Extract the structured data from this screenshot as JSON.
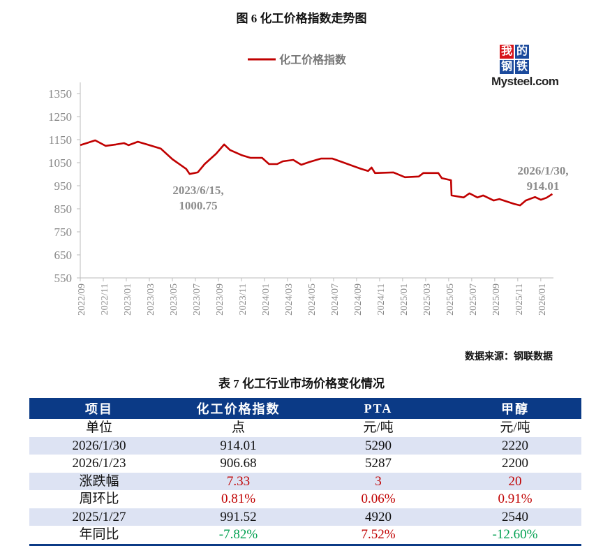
{
  "figure_title": "图 6 化工价格指数走势图",
  "table_title": "表 7 化工行业市场价格变化情况",
  "source": "数据来源：钢联数据",
  "logo": {
    "chars": [
      "我",
      "的",
      "钢",
      "铁"
    ],
    "word": "Mysteel.com"
  },
  "colors": {
    "line": "#c00000",
    "header": "#0b3a86",
    "stripe": "#dde3f3",
    "up": "#c00000",
    "down": "#00a050",
    "logo_red": "#d7141a",
    "logo_blue": "#1b4a9c"
  },
  "chart_data": {
    "type": "line",
    "title": "图 6 化工价格指数走势图",
    "legend": {
      "label": "化工价格指数",
      "placement": "top-center"
    },
    "xlabel": "",
    "ylabel": "",
    "ylim": [
      550,
      1350
    ],
    "yticks": [
      1350,
      1250,
      1150,
      1050,
      950,
      850,
      750,
      650,
      550
    ],
    "xlim_month_index": [
      0,
      41.1
    ],
    "xtick_labels": [
      "2022/09",
      "2022/11",
      "2023/01",
      "2023/03",
      "2023/05",
      "2023/07",
      "2023/09",
      "2023/11",
      "2024/01",
      "2024/03",
      "2024/05",
      "2024/07",
      "2024/09",
      "2024/11",
      "2025/01",
      "2025/03",
      "2025/05",
      "2025/07",
      "2025/09",
      "2025/11",
      "2026/01"
    ],
    "x_note": "x = months since 2022/09",
    "series": [
      {
        "name": "化工价格指数",
        "x": [
          0,
          1.3,
          2.2,
          3.1,
          3.8,
          4.2,
          5,
          5.8,
          7,
          8,
          9.2,
          9.5,
          10.2,
          10.8,
          11.8,
          12.5,
          13,
          14,
          14.8,
          15.8,
          16.4,
          17.1,
          17.6,
          18.5,
          19.2,
          19.9,
          20.9,
          21.9,
          22.9,
          24.4,
          25,
          25.3,
          25.6,
          27.2,
          28.2,
          29.4,
          29.8,
          31.1,
          31.4,
          32.2,
          32.25,
          33.3,
          33.8,
          34.5,
          35,
          35.9,
          36.4,
          37.7,
          38.2,
          38.7,
          39.5,
          40,
          40.5,
          41
        ],
        "values": [
          1126,
          1147,
          1123,
          1129,
          1135,
          1126,
          1141,
          1129,
          1111,
          1065,
          1023,
          1001,
          1008,
          1044,
          1089,
          1129,
          1105,
          1083,
          1071,
          1071,
          1044,
          1044,
          1056,
          1062,
          1041,
          1053,
          1068,
          1068,
          1050,
          1023,
          1014,
          1029,
          1005,
          1008,
          987,
          990,
          1005,
          1005,
          983,
          974,
          908,
          899,
          917,
          899,
          908,
          886,
          892,
          871,
          865,
          886,
          901,
          889,
          898,
          914.01
        ]
      }
    ],
    "annotations": [
      {
        "text_line1": "2023/6/15,",
        "text_line2": "1000.75",
        "x": 9.5,
        "value": 1000.75
      },
      {
        "text_line1": "2026/1/30,",
        "text_line2": "914.01",
        "x": 41,
        "value": 914.01
      }
    ]
  },
  "table": {
    "headers": [
      "项目",
      "化工价格指数",
      "PTA",
      "甲醇"
    ],
    "rows": [
      {
        "cells": [
          "单位",
          "点",
          "元/吨",
          "元/吨"
        ],
        "style": "plain",
        "tone": [
          "",
          "",
          "",
          ""
        ]
      },
      {
        "cells": [
          "2026/1/30",
          "914.01",
          "5290",
          "2220"
        ],
        "style": "stripe",
        "tone": [
          "",
          "",
          "",
          ""
        ]
      },
      {
        "cells": [
          "2026/1/23",
          "906.68",
          "5287",
          "2200"
        ],
        "style": "plain",
        "tone": [
          "",
          "",
          "",
          ""
        ]
      },
      {
        "cells": [
          "涨跌幅",
          "7.33",
          "3",
          "20"
        ],
        "style": "stripe",
        "tone": [
          "",
          "up",
          "up",
          "up"
        ]
      },
      {
        "cells": [
          "周环比",
          "0.81%",
          "0.06%",
          "0.91%"
        ],
        "style": "plain",
        "tone": [
          "",
          "up",
          "up",
          "up"
        ]
      },
      {
        "cells": [
          "2025/1/27",
          "991.52",
          "4920",
          "2540"
        ],
        "style": "stripe",
        "tone": [
          "",
          "",
          "",
          ""
        ]
      },
      {
        "cells": [
          "年同比",
          "-7.82%",
          "7.52%",
          "-12.60%"
        ],
        "style": "plain",
        "tone": [
          "",
          "down",
          "up",
          "down"
        ]
      }
    ]
  }
}
